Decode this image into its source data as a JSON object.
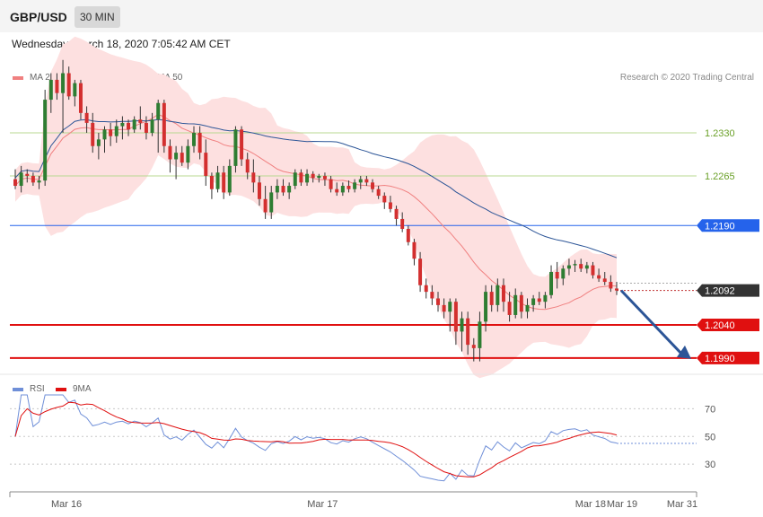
{
  "header": {
    "pair": "GBP/USD",
    "timeframe": "30 MIN"
  },
  "timestamp": "Wednesday, March 18, 2020 7:05:42 AM CET",
  "legend_main": [
    {
      "label": "MA 20 + Bollinger Bands",
      "color": "#f08080"
    },
    {
      "label": "MA 50",
      "color": "#2c5597"
    }
  ],
  "copyright": "Research © 2020 Trading Central",
  "legend_rsi": [
    {
      "label": "RSI",
      "color": "#6f8fd8"
    },
    {
      "label": "9MA",
      "color": "#e01010"
    }
  ],
  "chart_data": [
    {
      "type": "candlestick",
      "ylim": [
        1.1975,
        1.2395
      ],
      "x_labels": [
        "Mar 16",
        "Mar 17",
        "Mar 18",
        "Mar 19",
        "Mar 31"
      ],
      "levels": [
        {
          "value": 1.233,
          "label": "1.2330",
          "kind": "resistance",
          "color": "#b8d890",
          "text_color": "#6aa028"
        },
        {
          "value": 1.2265,
          "label": "1.2265",
          "kind": "resistance",
          "color": "#b8d890",
          "text_color": "#6aa028"
        },
        {
          "value": 1.219,
          "label": "1.2190",
          "kind": "pivot",
          "color": "#2563eb"
        },
        {
          "value": 1.2092,
          "label": "1.2092",
          "kind": "last price",
          "color": "#333333"
        },
        {
          "value": 1.204,
          "label": "1.2040",
          "kind": "support",
          "color": "#e01010"
        },
        {
          "value": 1.199,
          "label": "1.1990",
          "kind": "support",
          "color": "#e01010"
        }
      ],
      "forecast_target": 1.199,
      "candles": [
        [
          1.226,
          1.2275,
          1.2245,
          1.225
        ],
        [
          1.225,
          1.228,
          1.224,
          1.227
        ],
        [
          1.2268,
          1.2275,
          1.2255,
          1.2265
        ],
        [
          1.2265,
          1.227,
          1.225,
          1.2255
        ],
        [
          1.2255,
          1.2265,
          1.2245,
          1.2258
        ],
        [
          1.2258,
          1.2395,
          1.225,
          1.238
        ],
        [
          1.238,
          1.242,
          1.236,
          1.241
        ],
        [
          1.241,
          1.242,
          1.238,
          1.239
        ],
        [
          1.239,
          1.244,
          1.233,
          1.242
        ],
        [
          1.242,
          1.243,
          1.238,
          1.2385
        ],
        [
          1.2385,
          1.241,
          1.237,
          1.2405
        ],
        [
          1.2405,
          1.241,
          1.235,
          1.236
        ],
        [
          1.236,
          1.237,
          1.233,
          1.2345
        ],
        [
          1.2345,
          1.236,
          1.23,
          1.231
        ],
        [
          1.231,
          1.233,
          1.229,
          1.232
        ],
        [
          1.232,
          1.234,
          1.23,
          1.2335
        ],
        [
          1.2335,
          1.2345,
          1.231,
          1.2325
        ],
        [
          1.2325,
          1.235,
          1.2315,
          1.234
        ],
        [
          1.234,
          1.2355,
          1.232,
          1.2345
        ],
        [
          1.2345,
          1.235,
          1.2325,
          1.2335
        ],
        [
          1.2335,
          1.2355,
          1.233,
          1.235
        ],
        [
          1.235,
          1.237,
          1.2335,
          1.2345
        ],
        [
          1.2345,
          1.2355,
          1.232,
          1.233
        ],
        [
          1.233,
          1.236,
          1.2325,
          1.235
        ],
        [
          1.235,
          1.238,
          1.23,
          1.2375
        ],
        [
          1.2375,
          1.238,
          1.23,
          1.231
        ],
        [
          1.231,
          1.232,
          1.227,
          1.229
        ],
        [
          1.229,
          1.231,
          1.226,
          1.23
        ],
        [
          1.23,
          1.231,
          1.228,
          1.2285
        ],
        [
          1.2285,
          1.232,
          1.2275,
          1.231
        ],
        [
          1.231,
          1.234,
          1.23,
          1.233
        ],
        [
          1.233,
          1.234,
          1.229,
          1.23
        ],
        [
          1.23,
          1.232,
          1.225,
          1.2265
        ],
        [
          1.2265,
          1.227,
          1.223,
          1.2245
        ],
        [
          1.2245,
          1.228,
          1.224,
          1.227
        ],
        [
          1.227,
          1.228,
          1.223,
          1.224
        ],
        [
          1.224,
          1.229,
          1.2235,
          1.228
        ],
        [
          1.228,
          1.234,
          1.227,
          1.2335
        ],
        [
          1.2335,
          1.234,
          1.228,
          1.229
        ],
        [
          1.229,
          1.23,
          1.226,
          1.227
        ],
        [
          1.227,
          1.229,
          1.224,
          1.2255
        ],
        [
          1.2255,
          1.2265,
          1.222,
          1.223
        ],
        [
          1.223,
          1.225,
          1.22,
          1.221
        ],
        [
          1.221,
          1.225,
          1.22,
          1.224
        ],
        [
          1.224,
          1.226,
          1.223,
          1.225
        ],
        [
          1.225,
          1.226,
          1.2235,
          1.224
        ],
        [
          1.224,
          1.2255,
          1.223,
          1.225
        ],
        [
          1.225,
          1.2275,
          1.2245,
          1.227
        ],
        [
          1.227,
          1.2275,
          1.225,
          1.2255
        ],
        [
          1.2255,
          1.2275,
          1.225,
          1.2268
        ],
        [
          1.2268,
          1.2272,
          1.2255,
          1.2262
        ],
        [
          1.2262,
          1.2268,
          1.2255,
          1.2265
        ],
        [
          1.2265,
          1.227,
          1.225,
          1.226
        ],
        [
          1.226,
          1.2265,
          1.224,
          1.2245
        ],
        [
          1.2245,
          1.2255,
          1.2235,
          1.224
        ],
        [
          1.224,
          1.2255,
          1.2235,
          1.225
        ],
        [
          1.225,
          1.2258,
          1.224,
          1.2245
        ],
        [
          1.2245,
          1.226,
          1.224,
          1.2255
        ],
        [
          1.2255,
          1.2265,
          1.2245,
          1.226
        ],
        [
          1.226,
          1.2265,
          1.225,
          1.2255
        ],
        [
          1.2255,
          1.226,
          1.224,
          1.2245
        ],
        [
          1.2245,
          1.225,
          1.223,
          1.2235
        ],
        [
          1.2235,
          1.224,
          1.2215,
          1.2225
        ],
        [
          1.2225,
          1.2235,
          1.221,
          1.2215
        ],
        [
          1.2215,
          1.222,
          1.219,
          1.22
        ],
        [
          1.22,
          1.221,
          1.218,
          1.2185
        ],
        [
          1.2185,
          1.219,
          1.216,
          1.2165
        ],
        [
          1.2165,
          1.217,
          1.213,
          1.214
        ],
        [
          1.214,
          1.215,
          1.209,
          1.21
        ],
        [
          1.21,
          1.211,
          1.208,
          1.209
        ],
        [
          1.209,
          1.21,
          1.207,
          1.208
        ],
        [
          1.208,
          1.209,
          1.206,
          1.207
        ],
        [
          1.207,
          1.208,
          1.205,
          1.206
        ],
        [
          1.206,
          1.208,
          1.203,
          1.2075
        ],
        [
          1.2075,
          1.208,
          1.201,
          1.203
        ],
        [
          1.203,
          1.206,
          1.2,
          1.205
        ],
        [
          1.205,
          1.206,
          1.1995,
          1.201
        ],
        [
          1.201,
          1.202,
          1.1985,
          1.2005
        ],
        [
          1.2005,
          1.206,
          1.1985,
          1.2045
        ],
        [
          1.2045,
          1.21,
          1.203,
          1.209
        ],
        [
          1.209,
          1.21,
          1.206,
          1.207
        ],
        [
          1.207,
          1.211,
          1.206,
          1.21
        ],
        [
          1.21,
          1.211,
          1.206,
          1.2075
        ],
        [
          1.2075,
          1.209,
          1.2045,
          1.2055
        ],
        [
          1.2055,
          1.2095,
          1.205,
          1.2085
        ],
        [
          1.2085,
          1.209,
          1.205,
          1.206
        ],
        [
          1.206,
          1.208,
          1.205,
          1.207
        ],
        [
          1.207,
          1.2085,
          1.206,
          1.208
        ],
        [
          1.208,
          1.209,
          1.207,
          1.2075
        ],
        [
          1.2075,
          1.209,
          1.2065,
          1.2085
        ],
        [
          1.2085,
          1.213,
          1.208,
          1.212
        ],
        [
          1.212,
          1.2135,
          1.2095,
          1.211
        ],
        [
          1.211,
          1.213,
          1.21,
          1.2125
        ],
        [
          1.2125,
          1.214,
          1.2115,
          1.213
        ],
        [
          1.213,
          1.2138,
          1.212,
          1.2132
        ],
        [
          1.2132,
          1.214,
          1.212,
          1.2125
        ],
        [
          1.2125,
          1.2135,
          1.2118,
          1.213
        ],
        [
          1.213,
          1.2135,
          1.211,
          1.2115
        ],
        [
          1.2115,
          1.2125,
          1.2105,
          1.211
        ],
        [
          1.211,
          1.212,
          1.21,
          1.2105
        ],
        [
          1.2105,
          1.2115,
          1.209,
          1.2095
        ],
        [
          1.2095,
          1.2105,
          1.2085,
          1.2092
        ]
      ]
    },
    {
      "type": "line",
      "title": "RSI",
      "ylim": [
        10,
        80
      ],
      "levels": [
        {
          "value": 70,
          "label": "70"
        },
        {
          "value": 50,
          "label": "50"
        },
        {
          "value": 30,
          "label": "30"
        }
      ],
      "last_rsi": 45
    }
  ]
}
